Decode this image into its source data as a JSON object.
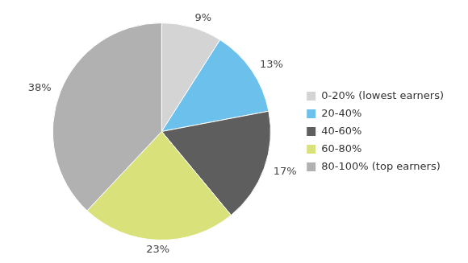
{
  "chart_data": {
    "type": "pie",
    "categories": [
      "0-20% (lowest earners)",
      "20-40%",
      "40-60%",
      "60-80%",
      "80-100% (top earners)"
    ],
    "values": [
      9,
      13,
      17,
      23,
      38
    ],
    "value_labels": [
      "9%",
      "13%",
      "17%",
      "23%",
      "38%"
    ],
    "colors": [
      "#d4d4d4",
      "#6cc0ec",
      "#5e5e5e",
      "#d9e27a",
      "#b1b1b1"
    ],
    "legend": "right",
    "data_labels": true
  }
}
